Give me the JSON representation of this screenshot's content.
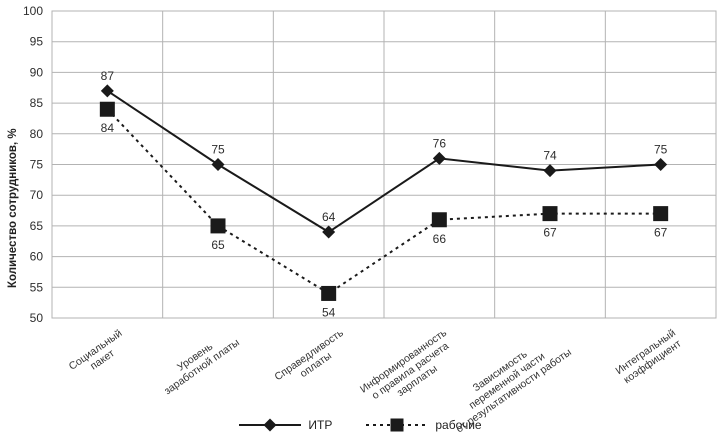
{
  "chart_data": {
    "type": "line",
    "title": "",
    "xlabel": "",
    "ylabel": "Количество сотрудников, %",
    "ylim": [
      50,
      100
    ],
    "yticks": [
      50,
      55,
      60,
      65,
      70,
      75,
      80,
      85,
      90,
      95,
      100
    ],
    "grid": true,
    "legend_position": "bottom-center",
    "categories": [
      "Социальный пакет",
      "Уровень заработной платы",
      "Справедливость оплаты",
      "Информированность о правила расчета зарплаты",
      "Зависимость переменной части от результативности работы",
      "Интегральный коэффициент"
    ],
    "categories_wrapped": [
      [
        "Социальный",
        "пакет"
      ],
      [
        "Уровень",
        "заработной платы"
      ],
      [
        "Справедливость",
        "оплаты"
      ],
      [
        "Информированность",
        "о правила расчета",
        "зарплаты"
      ],
      [
        "Зависимость",
        "переменной части",
        "от результативности работы"
      ],
      [
        "Интегральный",
        "коэффициент"
      ]
    ],
    "series": [
      {
        "name": "ИТР",
        "marker": "diamond",
        "line_style": "solid",
        "label_position": "above",
        "values": [
          87,
          75,
          64,
          76,
          74,
          75
        ]
      },
      {
        "name": "рабочие",
        "marker": "square",
        "line_style": "dashed",
        "label_position": "below",
        "values": [
          84,
          65,
          54,
          66,
          67,
          67
        ]
      }
    ],
    "colors": {
      "series": "#1a1a1a",
      "grid": "#b3b3b3",
      "text": "#2e2e2e",
      "background": "#ffffff"
    }
  }
}
